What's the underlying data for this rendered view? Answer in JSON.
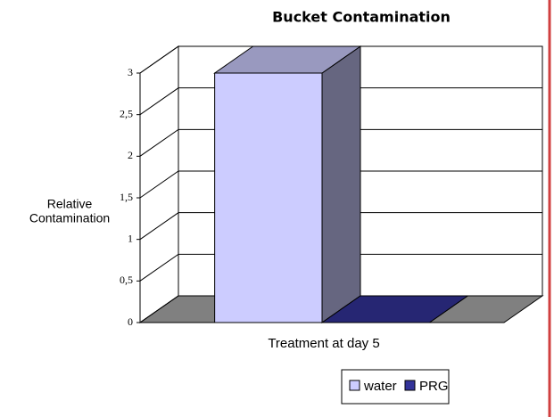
{
  "chart_data": {
    "type": "bar3d",
    "title": "Bucket Contamination",
    "y_label": [
      "Relative",
      "Contamination"
    ],
    "x_label": "Treatment at day 5",
    "categories": [
      null
    ],
    "series": [
      {
        "name": "water",
        "color": "#ccccff",
        "values": [
          3
        ]
      },
      {
        "name": "PRG",
        "color": "#333399",
        "values": [
          0
        ]
      }
    ],
    "ylim": [
      0,
      3
    ],
    "yticks": [
      0,
      {
        "value": 0.5,
        "label": "0,5"
      },
      1,
      {
        "value": 1.5,
        "label": "1,5"
      },
      2,
      {
        "value": 2.5,
        "label": "2,5"
      },
      3
    ],
    "grid": true,
    "floor_color": "#808080"
  }
}
